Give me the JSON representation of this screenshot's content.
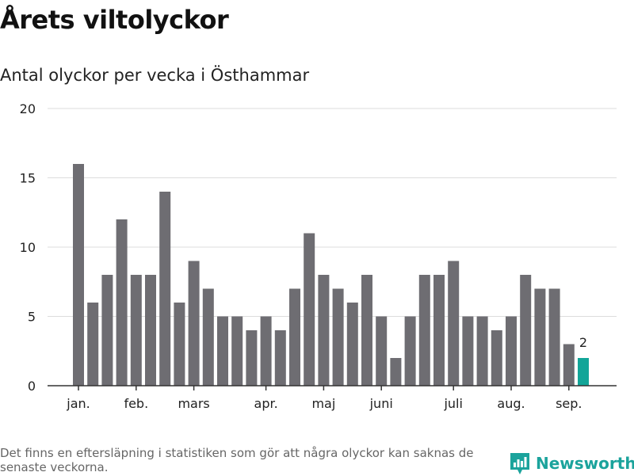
{
  "header": {
    "title": "Årets viltolyckor",
    "subtitle": "Antal olyckor per vecka i Östhammar"
  },
  "footer": {
    "note": "Det finns en eftersläpning i statistiken som gör att några olyckor kan saknas de senaste veckorna.",
    "brand": "Newsworthy",
    "brand_icon": "bar-chart-logo-icon"
  },
  "colors": {
    "bar": "#6e6d72",
    "highlight": "#12a598",
    "brand": "#1ba39c",
    "grid": "#dddddd",
    "axis": "#333333"
  },
  "chart_data": {
    "type": "bar",
    "title": "Årets viltolyckor",
    "subtitle": "Antal olyckor per vecka i Östhammar",
    "xlabel": "",
    "ylabel": "",
    "ylim": [
      0,
      20
    ],
    "yticks": [
      0,
      5,
      10,
      15,
      20
    ],
    "grid": true,
    "values": [
      16,
      6,
      8,
      12,
      8,
      8,
      14,
      6,
      9,
      7,
      5,
      5,
      4,
      5,
      4,
      7,
      11,
      8,
      7,
      6,
      8,
      5,
      2,
      5,
      8,
      8,
      9,
      5,
      5,
      4,
      5,
      8,
      7,
      7,
      3,
      2
    ],
    "highlight_last": true,
    "data_labels": [
      {
        "index": 35,
        "text": "2"
      }
    ],
    "month_labels": [
      {
        "label": "jan.",
        "index": 0
      },
      {
        "label": "feb.",
        "index": 4
      },
      {
        "label": "mars",
        "index": 8
      },
      {
        "label": "apr.",
        "index": 13
      },
      {
        "label": "maj",
        "index": 17
      },
      {
        "label": "juni",
        "index": 21
      },
      {
        "label": "juli",
        "index": 26
      },
      {
        "label": "aug.",
        "index": 30
      },
      {
        "label": "sep.",
        "index": 34
      }
    ]
  }
}
